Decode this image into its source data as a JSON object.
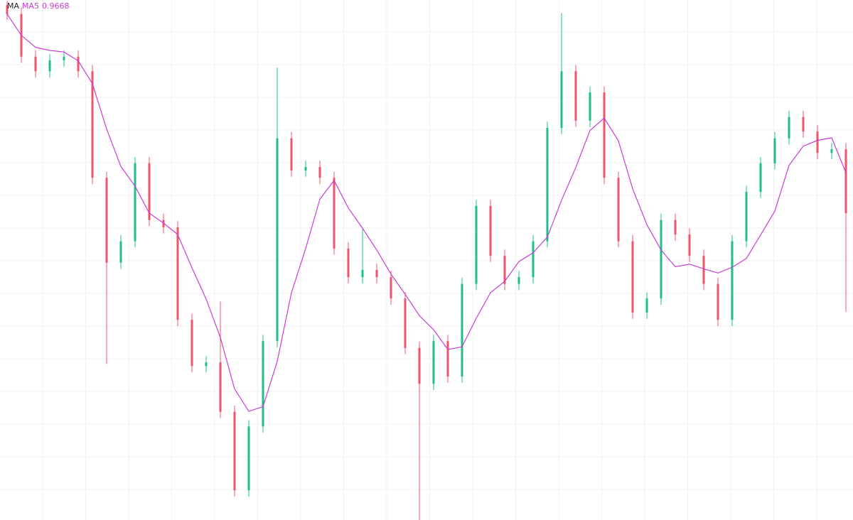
{
  "chart_data": {
    "type": "candlestick",
    "indicator": "MA",
    "up_color": "#1fbd8c",
    "down_color": "#f2536c",
    "ylim": [
      0.9,
      1.0
    ],
    "grid": true,
    "open": [
      0.999,
      0.9973,
      0.9891,
      0.9863,
      0.9884,
      0.9891,
      0.9863,
      0.9658,
      0.9495,
      0.9536,
      0.9686,
      0.9577,
      0.9563,
      0.9385,
      0.9296,
      0.9303,
      0.9208,
      0.9057,
      0.918,
      0.9344,
      0.9734,
      0.9672,
      0.9679,
      0.9658,
      0.9522,
      0.9467,
      0.9481,
      0.9467,
      0.9426,
      0.9331,
      0.9262,
      0.9344,
      0.9276,
      0.9454,
      0.9604,
      0.9508,
      0.9454,
      0.9467,
      0.9536,
      0.9754,
      0.9863,
      0.9768,
      0.9822,
      0.9658,
      0.9536,
      0.9399,
      0.9426,
      0.9577,
      0.9549,
      0.9508,
      0.9454,
      0.9385,
      0.9536,
      0.9631,
      0.9686,
      0.9734,
      0.9775,
      0.9747,
      0.9706,
      0.9713
    ],
    "high": [
      0.9998,
      0.9985,
      0.9903,
      0.9896,
      0.9903,
      0.9903,
      0.9875,
      0.967,
      0.9548,
      0.9698,
      0.9698,
      0.9589,
      0.9575,
      0.9397,
      0.9315,
      0.942,
      0.922,
      0.9192,
      0.9356,
      0.987,
      0.9746,
      0.9691,
      0.9691,
      0.967,
      0.9534,
      0.956,
      0.9493,
      0.9479,
      0.9438,
      0.9343,
      0.9356,
      0.9356,
      0.9466,
      0.9616,
      0.9616,
      0.952,
      0.9479,
      0.9548,
      0.9766,
      0.9975,
      0.9875,
      0.9834,
      0.9834,
      0.967,
      0.9548,
      0.9438,
      0.9589,
      0.9589,
      0.9561,
      0.952,
      0.9466,
      0.9548,
      0.9643,
      0.9698,
      0.9746,
      0.9787,
      0.9787,
      0.9759,
      0.9725,
      0.9725
    ],
    "low": [
      0.9961,
      0.9879,
      0.9851,
      0.9851,
      0.9872,
      0.9851,
      0.9646,
      0.93,
      0.9483,
      0.9524,
      0.9565,
      0.9551,
      0.9373,
      0.9284,
      0.9284,
      0.9196,
      0.9045,
      0.9045,
      0.9168,
      0.9332,
      0.966,
      0.966,
      0.9646,
      0.951,
      0.9455,
      0.9455,
      0.9455,
      0.9414,
      0.9319,
      0.9,
      0.925,
      0.9264,
      0.9264,
      0.9442,
      0.9496,
      0.9442,
      0.9442,
      0.9455,
      0.9524,
      0.9742,
      0.9756,
      0.9756,
      0.9646,
      0.9524,
      0.9387,
      0.9387,
      0.9414,
      0.9537,
      0.9496,
      0.9442,
      0.9373,
      0.9373,
      0.9524,
      0.9619,
      0.9674,
      0.9722,
      0.9735,
      0.9694,
      0.9694,
      0.94
    ],
    "close": [
      0.9973,
      0.9891,
      0.9863,
      0.9884,
      0.9891,
      0.9863,
      0.9658,
      0.9495,
      0.9536,
      0.9686,
      0.9577,
      0.9563,
      0.9385,
      0.9296,
      0.9303,
      0.9208,
      0.9057,
      0.918,
      0.9344,
      0.9734,
      0.9672,
      0.9679,
      0.9658,
      0.9522,
      0.9467,
      0.9481,
      0.9467,
      0.9426,
      0.9331,
      0.9262,
      0.9344,
      0.9276,
      0.9454,
      0.9604,
      0.9508,
      0.9454,
      0.9467,
      0.9536,
      0.9754,
      0.9863,
      0.9768,
      0.9822,
      0.9658,
      0.9536,
      0.9399,
      0.9426,
      0.9577,
      0.9549,
      0.9508,
      0.9454,
      0.9385,
      0.9536,
      0.9631,
      0.9686,
      0.9734,
      0.9775,
      0.9747,
      0.9706,
      0.9713,
      0.959
    ],
    "series": [
      {
        "name": "MA5",
        "color": "#c83cd6",
        "last_value": 0.9668,
        "values": [
          0.9973,
          0.9932,
          0.9909,
          0.9903,
          0.99,
          0.9883,
          0.9839,
          0.9752,
          0.968,
          0.9642,
          0.959,
          0.9571,
          0.9549,
          0.9485,
          0.9425,
          0.9351,
          0.9252,
          0.9209,
          0.9218,
          0.9305,
          0.9437,
          0.9522,
          0.9617,
          0.9653,
          0.96,
          0.9561,
          0.9519,
          0.9473,
          0.9434,
          0.9393,
          0.9366,
          0.9328,
          0.9333,
          0.9388,
          0.9437,
          0.9459,
          0.9497,
          0.9514,
          0.9544,
          0.9615,
          0.9678,
          0.9749,
          0.9773,
          0.9729,
          0.9637,
          0.9568,
          0.9519,
          0.9487,
          0.9492,
          0.9483,
          0.9475,
          0.9486,
          0.9503,
          0.9548,
          0.9594,
          0.9682,
          0.9719,
          0.973,
          0.9735,
          0.9668
        ]
      }
    ]
  }
}
